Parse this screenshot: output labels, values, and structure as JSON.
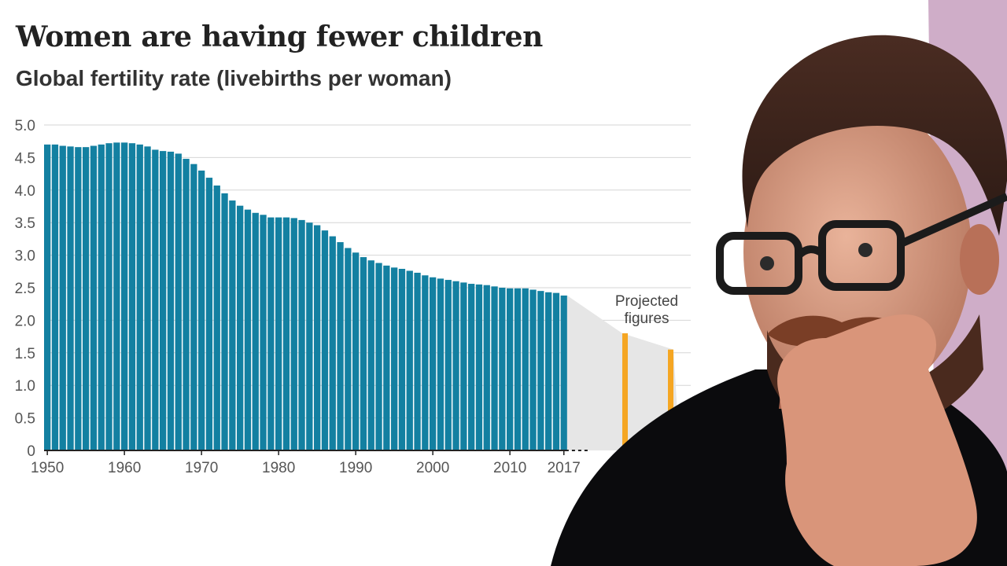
{
  "chart_data": {
    "type": "bar",
    "title": "Women are having fewer children",
    "subtitle": "Global fertility rate (livebirths per woman)",
    "ylim": [
      0,
      5
    ],
    "y_ticks": [
      "0",
      "0.5",
      "1.0",
      "1.5",
      "2.0",
      "2.5",
      "3.0",
      "3.5",
      "4.0",
      "4.5",
      "5.0"
    ],
    "x_ticks": [
      "1950",
      "1960",
      "1970",
      "1980",
      "1990",
      "2000",
      "2010",
      "2017"
    ],
    "grid": true,
    "years": [
      1950,
      1951,
      1952,
      1953,
      1954,
      1955,
      1956,
      1957,
      1958,
      1959,
      1960,
      1961,
      1962,
      1963,
      1964,
      1965,
      1966,
      1967,
      1968,
      1969,
      1970,
      1971,
      1972,
      1973,
      1974,
      1975,
      1976,
      1977,
      1978,
      1979,
      1980,
      1981,
      1982,
      1983,
      1984,
      1985,
      1986,
      1987,
      1988,
      1989,
      1990,
      1991,
      1992,
      1993,
      1994,
      1995,
      1996,
      1997,
      1998,
      1999,
      2000,
      2001,
      2002,
      2003,
      2004,
      2005,
      2006,
      2007,
      2008,
      2009,
      2010,
      2011,
      2012,
      2013,
      2014,
      2015,
      2016,
      2017
    ],
    "values": [
      4.7,
      4.7,
      4.68,
      4.67,
      4.66,
      4.66,
      4.68,
      4.7,
      4.72,
      4.73,
      4.73,
      4.72,
      4.7,
      4.67,
      4.62,
      4.6,
      4.59,
      4.56,
      4.48,
      4.4,
      4.3,
      4.19,
      4.07,
      3.95,
      3.84,
      3.76,
      3.7,
      3.65,
      3.62,
      3.58,
      3.58,
      3.58,
      3.57,
      3.54,
      3.5,
      3.46,
      3.38,
      3.29,
      3.2,
      3.11,
      3.04,
      2.97,
      2.92,
      2.88,
      2.84,
      2.81,
      2.79,
      2.76,
      2.73,
      2.69,
      2.66,
      2.64,
      2.62,
      2.6,
      2.58,
      2.56,
      2.55,
      2.54,
      2.52,
      2.5,
      2.49,
      2.49,
      2.49,
      2.47,
      2.45,
      2.43,
      2.42,
      2.38
    ],
    "bar_color": "#1380a1",
    "projected": {
      "label_line1": "Projected",
      "label_line2": "figures",
      "values": [
        1.8,
        1.55
      ],
      "color": "#f5a623"
    }
  }
}
